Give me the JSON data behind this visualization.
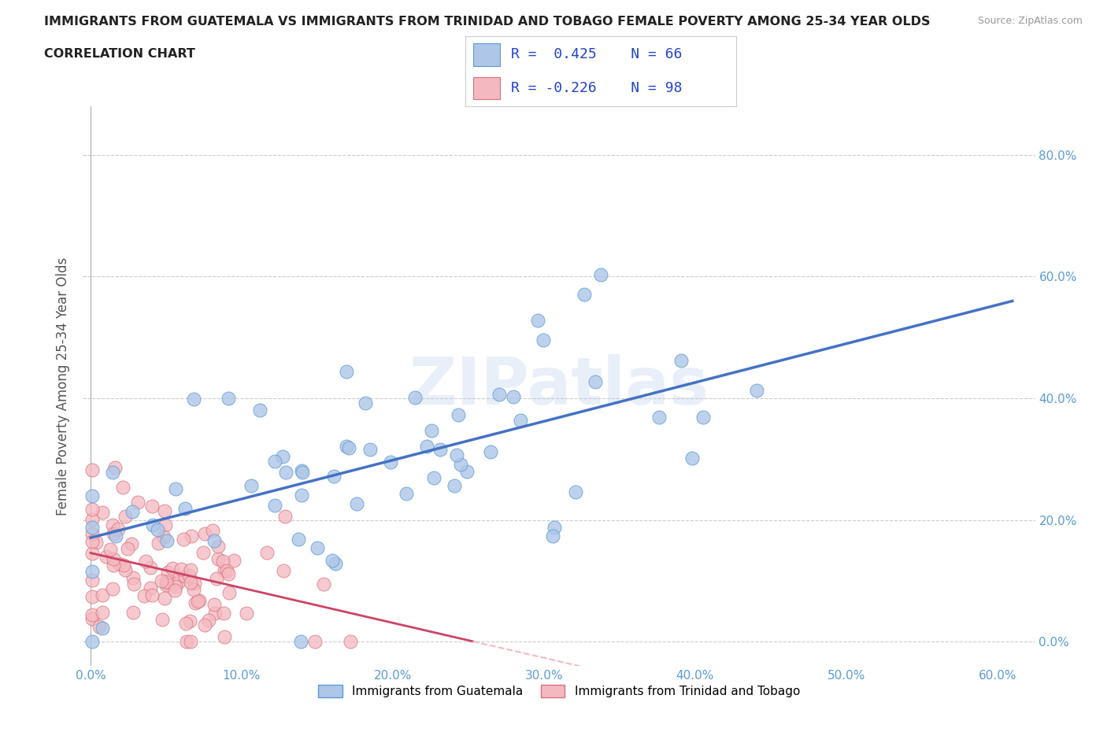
{
  "title_line1": "IMMIGRANTS FROM GUATEMALA VS IMMIGRANTS FROM TRINIDAD AND TOBAGO FEMALE POVERTY AMONG 25-34 YEAR OLDS",
  "title_line2": "CORRELATION CHART",
  "source": "Source: ZipAtlas.com",
  "ylabel": "Female Poverty Among 25-34 Year Olds",
  "xlim": [
    -0.005,
    0.625
  ],
  "ylim": [
    -0.04,
    0.88
  ],
  "xticks": [
    0.0,
    0.1,
    0.2,
    0.3,
    0.4,
    0.5,
    0.6
  ],
  "xticklabels": [
    "0.0%",
    "10.0%",
    "20.0%",
    "30.0%",
    "40.0%",
    "50.0%",
    "60.0%"
  ],
  "ytick_vals": [
    0.0,
    0.2,
    0.4,
    0.6,
    0.8
  ],
  "yticklabels": [
    "0.0%",
    "20.0%",
    "40.0%",
    "60.0%",
    "80.0%"
  ],
  "guatemala_fill": "#aec6e8",
  "guatemala_edge": "#5b9bd5",
  "trinidad_fill": "#f4b8c1",
  "trinidad_edge": "#d9707a",
  "R_guatemala": 0.425,
  "N_guatemala": 66,
  "R_trinidad": -0.226,
  "N_trinidad": 98,
  "legend_text_color": "#2244cc",
  "regression_blue": "#4472c4",
  "regression_pink": "#cc4466",
  "background_color": "#ffffff",
  "grid_color": "#cccccc",
  "title_color": "#222222",
  "tick_color": "#5b9bd5",
  "watermark_text": "ZIPatlas",
  "watermark_color": "#aec6e8",
  "bottom_legend_label1": "Immigrants from Guatemala",
  "bottom_legend_label2": "Immigrants from Trinidad and Tobago"
}
